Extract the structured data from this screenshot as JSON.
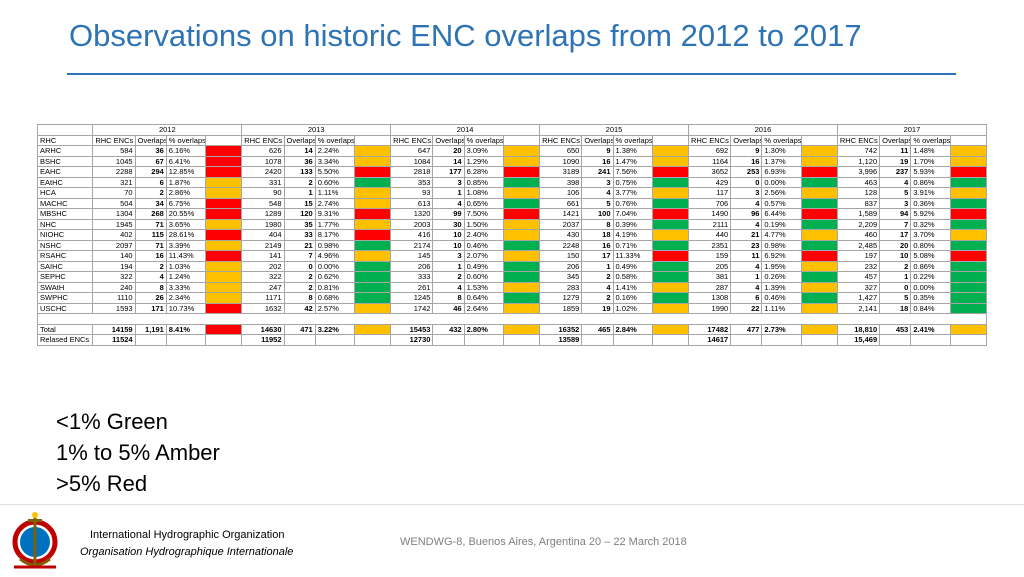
{
  "title": "Observations on historic ENC overlaps from 2012 to 2017",
  "legend": [
    "<1% Green",
    "1% to 5% Amber",
    ">5% Red"
  ],
  "footer": {
    "org_en": "International Hydrographic Organization",
    "org_fr": "Organisation Hydrographique Internationale",
    "event": "WENDWG-8, Buenos Aires, Argentina 20 – 22 March 2018"
  },
  "colors": {
    "green": "#00b050",
    "amber": "#ffc000",
    "red": "#ff0000",
    "title": "#2e74b5"
  },
  "chart_data": {
    "type": "table",
    "years": [
      "2012",
      "2013",
      "2014",
      "2015",
      "2016",
      "2017"
    ],
    "row_header": "RHC",
    "columns": [
      "RHC ENCs",
      "Overlaps",
      "% overlaps by Vol"
    ],
    "rows": [
      {
        "rhc": "ARHC",
        "cells": [
          [
            "584",
            "36",
            "6.16%",
            "r"
          ],
          [
            "626",
            "14",
            "2.24%",
            "a"
          ],
          [
            "647",
            "20",
            "3.09%",
            "a"
          ],
          [
            "650",
            "9",
            "1.38%",
            "a"
          ],
          [
            "692",
            "9",
            "1.30%",
            "a"
          ],
          [
            "742",
            "11",
            "1.48%",
            "a"
          ]
        ]
      },
      {
        "rhc": "BSHC",
        "cells": [
          [
            "1045",
            "67",
            "6.41%",
            "r"
          ],
          [
            "1078",
            "36",
            "3.34%",
            "a"
          ],
          [
            "1084",
            "14",
            "1.29%",
            "a"
          ],
          [
            "1090",
            "16",
            "1.47%",
            "a"
          ],
          [
            "1164",
            "16",
            "1.37%",
            "a"
          ],
          [
            "1,120",
            "19",
            "1.70%",
            "a"
          ]
        ]
      },
      {
        "rhc": "EAHC",
        "cells": [
          [
            "2288",
            "294",
            "12.85%",
            "r"
          ],
          [
            "2420",
            "133",
            "5.50%",
            "r"
          ],
          [
            "2818",
            "177",
            "6.28%",
            "r"
          ],
          [
            "3189",
            "241",
            "7.56%",
            "r"
          ],
          [
            "3652",
            "253",
            "6.93%",
            "r"
          ],
          [
            "3,996",
            "237",
            "5.93%",
            "r"
          ]
        ]
      },
      {
        "rhc": "EAtHC",
        "cells": [
          [
            "321",
            "6",
            "1.87%",
            "a"
          ],
          [
            "331",
            "2",
            "0.60%",
            "g"
          ],
          [
            "353",
            "3",
            "0.85%",
            "g"
          ],
          [
            "398",
            "3",
            "0.75%",
            "g"
          ],
          [
            "429",
            "0",
            "0.00%",
            "g"
          ],
          [
            "463",
            "4",
            "0.86%",
            "g"
          ]
        ]
      },
      {
        "rhc": "HCA",
        "cells": [
          [
            "70",
            "2",
            "2.86%",
            "a"
          ],
          [
            "90",
            "1",
            "1.11%",
            "a"
          ],
          [
            "93",
            "1",
            "1.08%",
            "a"
          ],
          [
            "106",
            "4",
            "3.77%",
            "a"
          ],
          [
            "117",
            "3",
            "2.56%",
            "a"
          ],
          [
            "128",
            "5",
            "3.91%",
            "a"
          ]
        ]
      },
      {
        "rhc": "MACHC",
        "cells": [
          [
            "504",
            "34",
            "6.75%",
            "r"
          ],
          [
            "548",
            "15",
            "2.74%",
            "a"
          ],
          [
            "613",
            "4",
            "0.65%",
            "g"
          ],
          [
            "661",
            "5",
            "0.76%",
            "g"
          ],
          [
            "706",
            "4",
            "0.57%",
            "g"
          ],
          [
            "837",
            "3",
            "0.36%",
            "g"
          ]
        ]
      },
      {
        "rhc": "MBSHC",
        "cells": [
          [
            "1304",
            "268",
            "20.55%",
            "r"
          ],
          [
            "1289",
            "120",
            "9.31%",
            "r"
          ],
          [
            "1320",
            "99",
            "7.50%",
            "r"
          ],
          [
            "1421",
            "100",
            "7.04%",
            "r"
          ],
          [
            "1490",
            "96",
            "6.44%",
            "r"
          ],
          [
            "1,589",
            "94",
            "5.92%",
            "r"
          ]
        ]
      },
      {
        "rhc": "NHC",
        "cells": [
          [
            "1945",
            "71",
            "3.65%",
            "a"
          ],
          [
            "1980",
            "35",
            "1.77%",
            "a"
          ],
          [
            "2003",
            "30",
            "1.50%",
            "a"
          ],
          [
            "2037",
            "8",
            "0.39%",
            "g"
          ],
          [
            "2111",
            "4",
            "0.19%",
            "g"
          ],
          [
            "2,209",
            "7",
            "0.32%",
            "g"
          ]
        ]
      },
      {
        "rhc": "NIOHC",
        "cells": [
          [
            "402",
            "115",
            "28.61%",
            "r"
          ],
          [
            "404",
            "33",
            "8.17%",
            "r"
          ],
          [
            "416",
            "10",
            "2.40%",
            "a"
          ],
          [
            "430",
            "18",
            "4.19%",
            "a"
          ],
          [
            "440",
            "21",
            "4.77%",
            "a"
          ],
          [
            "460",
            "17",
            "3.70%",
            "a"
          ]
        ]
      },
      {
        "rhc": "NSHC",
        "cells": [
          [
            "2097",
            "71",
            "3.39%",
            "a"
          ],
          [
            "2149",
            "21",
            "0.98%",
            "g"
          ],
          [
            "2174",
            "10",
            "0.46%",
            "g"
          ],
          [
            "2248",
            "16",
            "0.71%",
            "g"
          ],
          [
            "2351",
            "23",
            "0.98%",
            "g"
          ],
          [
            "2,485",
            "20",
            "0.80%",
            "g"
          ]
        ]
      },
      {
        "rhc": "RSAHC",
        "cells": [
          [
            "140",
            "16",
            "11.43%",
            "r"
          ],
          [
            "141",
            "7",
            "4.96%",
            "a"
          ],
          [
            "145",
            "3",
            "2.07%",
            "a"
          ],
          [
            "150",
            "17",
            "11.33%",
            "r"
          ],
          [
            "159",
            "11",
            "6.92%",
            "r"
          ],
          [
            "197",
            "10",
            "5.08%",
            "r"
          ]
        ]
      },
      {
        "rhc": "SAIHC",
        "cells": [
          [
            "194",
            "2",
            "1.03%",
            "a"
          ],
          [
            "202",
            "0",
            "0.00%",
            "g"
          ],
          [
            "206",
            "1",
            "0.49%",
            "g"
          ],
          [
            "206",
            "1",
            "0.49%",
            "g"
          ],
          [
            "205",
            "4",
            "1.95%",
            "a"
          ],
          [
            "232",
            "2",
            "0.86%",
            "g"
          ]
        ]
      },
      {
        "rhc": "SEPHC",
        "cells": [
          [
            "322",
            "4",
            "1.24%",
            "a"
          ],
          [
            "322",
            "2",
            "0.62%",
            "g"
          ],
          [
            "333",
            "2",
            "0.60%",
            "g"
          ],
          [
            "345",
            "2",
            "0.58%",
            "g"
          ],
          [
            "381",
            "1",
            "0.26%",
            "g"
          ],
          [
            "457",
            "1",
            "0.22%",
            "g"
          ]
        ]
      },
      {
        "rhc": "SWAtH",
        "cells": [
          [
            "240",
            "8",
            "3.33%",
            "a"
          ],
          [
            "247",
            "2",
            "0.81%",
            "g"
          ],
          [
            "261",
            "4",
            "1.53%",
            "a"
          ],
          [
            "283",
            "4",
            "1.41%",
            "a"
          ],
          [
            "287",
            "4",
            "1.39%",
            "a"
          ],
          [
            "327",
            "0",
            "0.00%",
            "g"
          ]
        ]
      },
      {
        "rhc": "SWPHC",
        "cells": [
          [
            "1110",
            "26",
            "2.34%",
            "a"
          ],
          [
            "1171",
            "8",
            "0.68%",
            "g"
          ],
          [
            "1245",
            "8",
            "0.64%",
            "g"
          ],
          [
            "1279",
            "2",
            "0.16%",
            "g"
          ],
          [
            "1308",
            "6",
            "0.46%",
            "g"
          ],
          [
            "1,427",
            "5",
            "0.35%",
            "g"
          ]
        ]
      },
      {
        "rhc": "USCHC",
        "cells": [
          [
            "1593",
            "171",
            "10.73%",
            "r"
          ],
          [
            "1632",
            "42",
            "2.57%",
            "a"
          ],
          [
            "1742",
            "46",
            "2.64%",
            "a"
          ],
          [
            "1859",
            "19",
            "1.02%",
            "a"
          ],
          [
            "1990",
            "22",
            "1.11%",
            "a"
          ],
          [
            "2,141",
            "18",
            "0.84%",
            "g"
          ]
        ]
      }
    ],
    "total": {
      "label": "Total",
      "cells": [
        [
          "14159",
          "1,191",
          "8.41%",
          "r"
        ],
        [
          "14630",
          "471",
          "3.22%",
          "a"
        ],
        [
          "15453",
          "432",
          "2.80%",
          "a"
        ],
        [
          "16352",
          "465",
          "2.84%",
          "a"
        ],
        [
          "17482",
          "477",
          "2.73%",
          "a"
        ],
        [
          "18,810",
          "453",
          "2.41%",
          "a"
        ]
      ]
    },
    "released": {
      "label": "Relased ENCs",
      "values": [
        "11524",
        "11952",
        "12730",
        "13589",
        "14617",
        "15,469"
      ]
    }
  }
}
